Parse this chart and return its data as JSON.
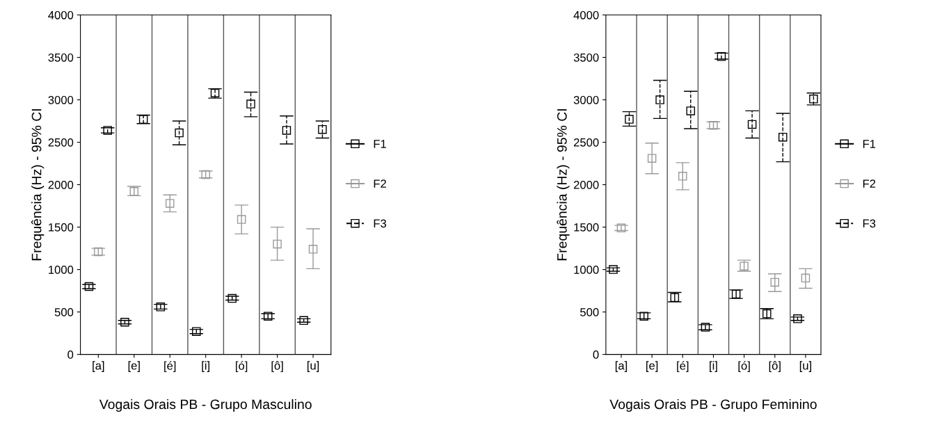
{
  "chart_data": [
    {
      "type": "scatter",
      "xlabel": "Vogais Orais PB - Grupo Masculino",
      "ylabel": "Frequência (Hz) - 95% CI",
      "categories": [
        "[a]",
        "[e]",
        "[é]",
        "[i]",
        "[ó]",
        "[ô]",
        "[u]"
      ],
      "ylim": [
        0,
        4000
      ],
      "yticks": [
        0,
        500,
        1000,
        1500,
        2000,
        2500,
        3000,
        3500,
        4000
      ],
      "grid": "x",
      "legend": "right",
      "marker": "square",
      "series": [
        {
          "name": "F1",
          "color": "#000000",
          "line_style": "solid",
          "values": [
            800,
            380,
            560,
            270,
            660,
            450,
            400
          ],
          "errors": [
            [
              775,
              825
            ],
            [
              360,
              400
            ],
            [
              535,
              590
            ],
            [
              245,
              295
            ],
            [
              640,
              685
            ],
            [
              420,
              480
            ],
            [
              380,
              420
            ]
          ]
        },
        {
          "name": "F2",
          "color": "#999999",
          "line_style": "solid",
          "values": [
            1210,
            1920,
            1780,
            2120,
            1590,
            1300,
            1240
          ],
          "errors": [
            [
              1170,
              1250
            ],
            [
              1870,
              1980
            ],
            [
              1680,
              1880
            ],
            [
              2080,
              2160
            ],
            [
              1420,
              1760
            ],
            [
              1110,
              1500
            ],
            [
              1010,
              1480
            ]
          ]
        },
        {
          "name": "F3",
          "color": "#000000",
          "line_style": "dashed",
          "values": [
            2640,
            2770,
            2610,
            3080,
            2950,
            2640,
            2650
          ],
          "errors": [
            [
              2610,
              2670
            ],
            [
              2720,
              2820
            ],
            [
              2470,
              2750
            ],
            [
              3020,
              3130
            ],
            [
              2800,
              3090
            ],
            [
              2480,
              2810
            ],
            [
              2550,
              2750
            ]
          ]
        }
      ]
    },
    {
      "type": "scatter",
      "xlabel": "Vogais Orais PB - Grupo Feminino",
      "ylabel": "Frequência (Hz) - 95% CI",
      "categories": [
        "[a]",
        "[e]",
        "[é]",
        "[i]",
        "[ó]",
        "[ô]",
        "[u]"
      ],
      "ylim": [
        0,
        4000
      ],
      "yticks": [
        0,
        500,
        1000,
        1500,
        2000,
        2500,
        3000,
        3500,
        4000
      ],
      "grid": "x",
      "legend": "right",
      "marker": "square",
      "series": [
        {
          "name": "F1",
          "color": "#000000",
          "line_style": "solid",
          "values": [
            1000,
            450,
            670,
            320,
            710,
            480,
            420
          ],
          "errors": [
            [
              980,
              1020
            ],
            [
              420,
              490
            ],
            [
              620,
              730
            ],
            [
              290,
              350
            ],
            [
              660,
              760
            ],
            [
              420,
              540
            ],
            [
              400,
              440
            ]
          ]
        },
        {
          "name": "F2",
          "color": "#999999",
          "line_style": "solid",
          "values": [
            1490,
            2310,
            2100,
            2700,
            1040,
            850,
            900
          ],
          "errors": [
            [
              1460,
              1520
            ],
            [
              2130,
              2490
            ],
            [
              1940,
              2260
            ],
            [
              2660,
              2740
            ],
            [
              980,
              1110
            ],
            [
              740,
              950
            ],
            [
              780,
              1010
            ]
          ]
        },
        {
          "name": "F3",
          "color": "#000000",
          "line_style": "dashed",
          "values": [
            2770,
            3000,
            2870,
            3510,
            2710,
            2560,
            3010
          ],
          "errors": [
            [
              2690,
              2860
            ],
            [
              2780,
              3230
            ],
            [
              2660,
              3100
            ],
            [
              3480,
              3550
            ],
            [
              2550,
              2870
            ],
            [
              2270,
              2840
            ],
            [
              2940,
              3080
            ]
          ]
        }
      ]
    }
  ]
}
